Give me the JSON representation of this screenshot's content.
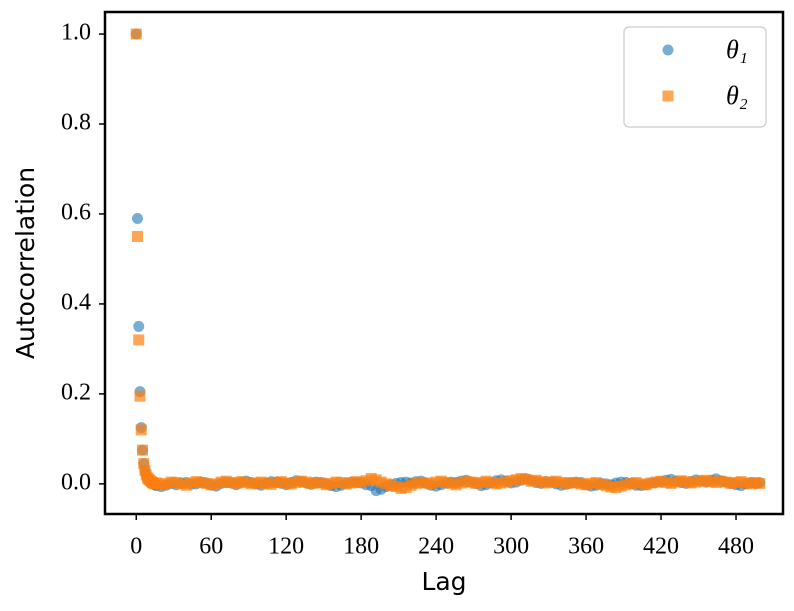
{
  "chart_data": {
    "type": "scatter",
    "xlabel": "Lag",
    "ylabel": "Autocorrelation",
    "xlim": [
      -25,
      517.6
    ],
    "ylim": [
      -0.067,
      1.049
    ],
    "xticks": [
      0,
      60,
      120,
      180,
      240,
      300,
      360,
      420,
      480
    ],
    "yticks": [
      {
        "value": 0,
        "label": "0.0"
      },
      {
        "value": 0.2,
        "label": "0.2"
      },
      {
        "value": 0.4,
        "label": "0.4"
      },
      {
        "value": 0.6,
        "label": "0.6"
      },
      {
        "value": 0.8,
        "label": "0.8"
      },
      {
        "value": 1,
        "label": "1.0"
      }
    ],
    "legend": "upper right",
    "x": [
      0,
      1,
      2,
      3,
      4,
      5,
      6,
      7,
      8,
      9,
      10,
      11,
      12,
      13,
      14,
      15,
      16,
      20,
      24,
      28,
      32,
      36,
      40,
      44,
      48,
      52,
      56,
      60,
      64,
      68,
      72,
      76,
      80,
      84,
      88,
      92,
      96,
      100,
      104,
      108,
      112,
      116,
      120,
      124,
      128,
      132,
      136,
      140,
      144,
      148,
      152,
      156,
      160,
      164,
      168,
      172,
      176,
      180,
      184,
      188,
      192,
      196,
      200,
      204,
      208,
      212,
      216,
      220,
      224,
      228,
      232,
      236,
      240,
      244,
      248,
      252,
      256,
      260,
      264,
      268,
      272,
      276,
      280,
      284,
      288,
      292,
      296,
      300,
      304,
      308,
      312,
      316,
      320,
      324,
      328,
      332,
      336,
      340,
      344,
      348,
      352,
      356,
      360,
      364,
      368,
      372,
      376,
      380,
      384,
      388,
      392,
      396,
      400,
      404,
      408,
      412,
      416,
      420,
      424,
      428,
      432,
      436,
      440,
      444,
      448,
      452,
      456,
      460,
      464,
      468,
      472,
      476,
      480,
      484,
      488,
      492,
      496,
      499
    ],
    "series": [
      {
        "name": "θ₁",
        "color": "#1f77b4",
        "marker": "circle",
        "values": [
          1.0,
          0.59,
          0.35,
          0.205,
          0.125,
          0.075,
          0.045,
          0.03,
          0.02,
          0.012,
          0.008,
          0.006,
          0.004,
          0.002,
          0.0,
          -0.002,
          -0.004,
          -0.006,
          -0.003,
          0.001,
          -0.002,
          0.002,
          0.003,
          -0.001,
          0.0,
          0.004,
          0.002,
          -0.003,
          -0.005,
          0.001,
          0.003,
          0.002,
          -0.002,
          0.004,
          0.006,
          0.003,
          0.0,
          -0.003,
          0.002,
          0.005,
          0.004,
          0.001,
          -0.002,
          0.003,
          0.007,
          0.005,
          0.002,
          -0.001,
          0.004,
          0.003,
          0.0,
          -0.004,
          -0.006,
          -0.003,
          0.001,
          0.004,
          0.003,
          0.002,
          -0.002,
          -0.004,
          -0.015,
          -0.012,
          -0.006,
          -0.002,
          0.001,
          0.003,
          0.004,
          0.002,
          0.005,
          0.006,
          0.001,
          -0.003,
          -0.005,
          -0.002,
          0.002,
          0.004,
          0.003,
          0.006,
          0.008,
          0.004,
          0.001,
          -0.004,
          -0.002,
          0.003,
          0.007,
          0.009,
          0.006,
          0.002,
          0.004,
          0.008,
          0.011,
          0.007,
          0.003,
          0.001,
          0.005,
          0.004,
          0.0,
          -0.003,
          -0.001,
          0.002,
          0.004,
          0.003,
          -0.002,
          -0.005,
          -0.003,
          0.001,
          0.0,
          -0.002,
          0.002,
          0.004,
          0.003,
          0.001,
          -0.003,
          -0.004,
          -0.002,
          0.002,
          0.003,
          0.005,
          0.008,
          0.01,
          0.006,
          0.003,
          0.001,
          0.005,
          0.009,
          0.007,
          0.004,
          0.008,
          0.011,
          0.007,
          0.004,
          0.001,
          -0.002,
          -0.004,
          0.0,
          0.003,
          0.001,
          0.002
        ]
      },
      {
        "name": "θ₂",
        "color": "#ff7f0e",
        "marker": "square",
        "values": [
          1.0,
          0.55,
          0.32,
          0.195,
          0.12,
          0.075,
          0.045,
          0.03,
          0.02,
          0.013,
          0.01,
          0.008,
          0.005,
          0.003,
          0.001,
          0.0,
          0.002,
          -0.002,
          0.001,
          0.004,
          0.003,
          0.0,
          -0.003,
          0.002,
          0.005,
          0.003,
          0.001,
          -0.002,
          0.0,
          0.004,
          0.006,
          0.003,
          0.001,
          0.005,
          0.003,
          0.0,
          0.002,
          0.004,
          0.001,
          -0.001,
          0.003,
          0.005,
          0.002,
          0.0,
          0.003,
          0.006,
          0.004,
          0.001,
          0.003,
          0.002,
          -0.002,
          0.001,
          0.004,
          0.003,
          0.0,
          0.002,
          0.005,
          0.003,
          0.007,
          0.012,
          0.009,
          0.004,
          0.0,
          -0.004,
          -0.006,
          -0.01,
          -0.008,
          -0.003,
          0.001,
          0.003,
          0.002,
          0.0,
          0.004,
          0.006,
          0.003,
          0.001,
          -0.002,
          0.002,
          0.005,
          0.004,
          0.001,
          0.003,
          0.006,
          0.003,
          0.0,
          0.002,
          0.004,
          0.007,
          0.009,
          0.012,
          0.01,
          0.006,
          0.008,
          0.005,
          0.002,
          0.004,
          0.006,
          0.003,
          0.001,
          0.003,
          0.002,
          0.0,
          -0.002,
          0.001,
          0.003,
          -0.001,
          -0.004,
          -0.007,
          -0.008,
          -0.005,
          -0.002,
          0.001,
          0.003,
          0.0,
          -0.002,
          0.002,
          0.004,
          0.006,
          0.003,
          0.001,
          0.004,
          0.007,
          0.005,
          0.002,
          0.004,
          0.006,
          0.008,
          0.005,
          0.003,
          0.006,
          0.004,
          0.001,
          0.003,
          0.005,
          0.002,
          0.0,
          0.003,
          0.001
        ]
      }
    ]
  }
}
